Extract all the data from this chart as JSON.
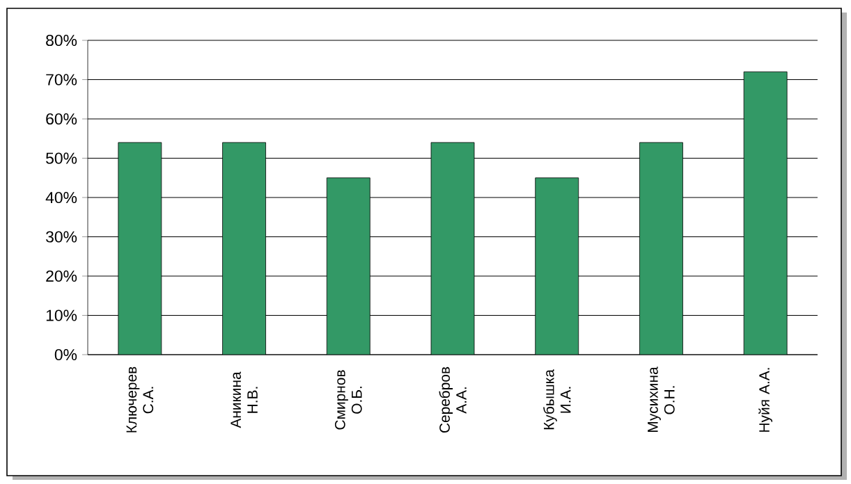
{
  "chart_data": {
    "type": "bar",
    "categories": [
      "Ключерев С.А.",
      "Аникина Н.В.",
      "Смирнов О.Б.",
      "Серебров А.А.",
      "Кубышка И.А.",
      "Мусихина О.Н.",
      "Нуйя А.А."
    ],
    "values": [
      54,
      54,
      45,
      54,
      45,
      54,
      72
    ],
    "color": "#339966",
    "ylim": [
      0,
      80
    ],
    "yticks": [
      {
        "value": 0,
        "label": "0%"
      },
      {
        "value": 10,
        "label": "10%"
      },
      {
        "value": 20,
        "label": "20%"
      },
      {
        "value": 30,
        "label": "30%"
      },
      {
        "value": 40,
        "label": "40%"
      },
      {
        "value": 50,
        "label": "50%"
      },
      {
        "value": 60,
        "label": "60%"
      },
      {
        "value": 70,
        "label": "70%"
      },
      {
        "value": 80,
        "label": "80%"
      }
    ],
    "grid": "y"
  }
}
